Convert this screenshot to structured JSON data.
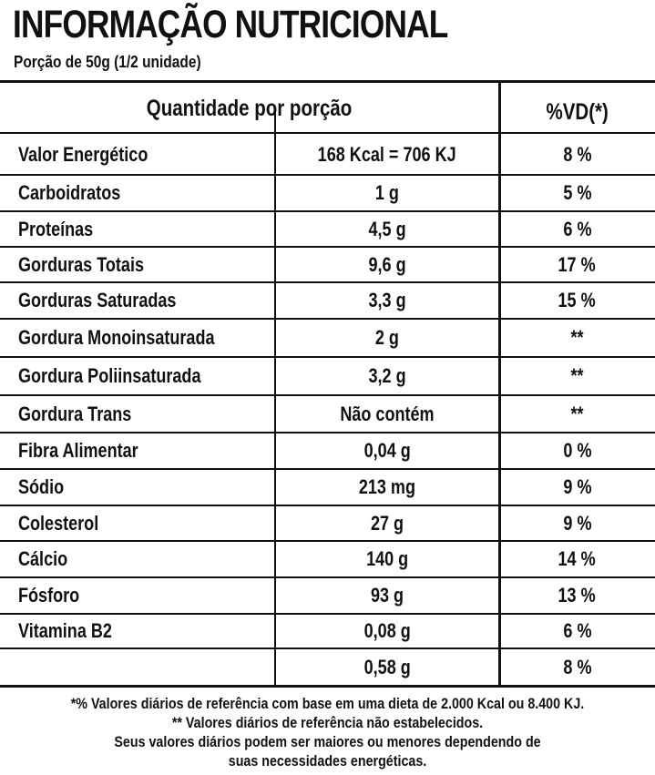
{
  "title": "INFORMAÇÃO NUTRICIONAL",
  "portion": "Porção de 50g (1/2 unidade)",
  "header": {
    "quantity_label": "Quantidade por porção",
    "vd_label": "%VD(*)"
  },
  "rows": [
    {
      "name": "Valor Energético",
      "quantity": "168 Kcal = 706 KJ",
      "vd": "8 %"
    },
    {
      "name": "Carboidratos",
      "quantity": "1 g",
      "vd": "5 %"
    },
    {
      "name": "Proteínas",
      "quantity": "4,5 g",
      "vd": "6 %"
    },
    {
      "name": "Gorduras Totais",
      "quantity": "9,6 g",
      "vd": "17 %"
    },
    {
      "name": "Gorduras Saturadas",
      "quantity": "3,3 g",
      "vd": "15 %"
    },
    {
      "name": "Gordura Monoinsaturada",
      "quantity": "2 g",
      "vd": "**"
    },
    {
      "name": "Gordura Poliinsaturada",
      "quantity": "3,2 g",
      "vd": "**"
    },
    {
      "name": "Gordura Trans",
      "quantity": "Não contém",
      "vd": "**"
    },
    {
      "name": "Fibra Alimentar",
      "quantity": "0,04 g",
      "vd": "0 %"
    },
    {
      "name": "Sódio",
      "quantity": "213 mg",
      "vd": "9 %"
    },
    {
      "name": "Colesterol",
      "quantity": "27 g",
      "vd": "9 %"
    },
    {
      "name": "Cálcio",
      "quantity": "140 g",
      "vd": "14 %"
    },
    {
      "name": "Fósforo",
      "quantity": "93 g",
      "vd": "13 %"
    },
    {
      "name": "Vitamina B2",
      "quantity": "0,08 g",
      "vd": "6 %"
    },
    {
      "name": "",
      "quantity": "0,58 g",
      "vd": "8 %"
    }
  ],
  "footnotes": [
    "*% Valores diários de referência com base em uma dieta de 2.000 Kcal ou 8.400 KJ.",
    "** Valores diários de referência não estabelecidos.",
    "Seus valores diários podem ser maiores ou menores dependendo de",
    "suas necessidades energéticas."
  ]
}
